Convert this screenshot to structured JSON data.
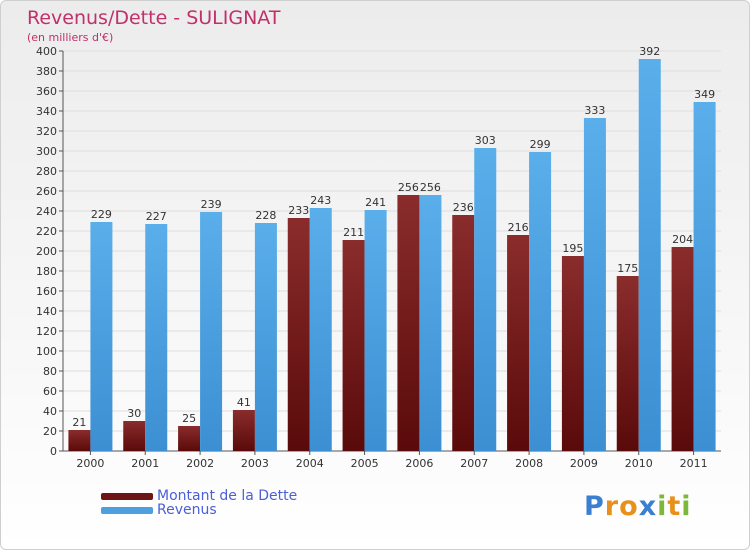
{
  "chart_data": {
    "type": "bar",
    "title": "Revenus/Dette - SULIGNAT",
    "subtitle": "(en milliers d'€)",
    "xlabel": "",
    "ylabel": "",
    "ylim": [
      0,
      400
    ],
    "ytick_step": 20,
    "grid": true,
    "legend_position": "bottom-left",
    "categories": [
      "2000",
      "2001",
      "2002",
      "2003",
      "2004",
      "2005",
      "2006",
      "2007",
      "2008",
      "2009",
      "2010",
      "2011"
    ],
    "series": [
      {
        "name": "Montant de la Dette",
        "color": "#6e1515",
        "values": [
          21,
          30,
          25,
          41,
          233,
          211,
          256,
          236,
          216,
          195,
          175,
          204
        ]
      },
      {
        "name": "Revenus",
        "color": "#4d9fe0",
        "values": [
          229,
          227,
          239,
          228,
          243,
          241,
          256,
          303,
          299,
          333,
          392,
          349
        ]
      }
    ]
  },
  "brand": {
    "letters": [
      {
        "ch": "P",
        "color": "#3a7fd0"
      },
      {
        "ch": "r",
        "color": "#e8901c"
      },
      {
        "ch": "o",
        "color": "#e8901c"
      },
      {
        "ch": "x",
        "color": "#3a7fd0"
      },
      {
        "ch": "i",
        "color": "#7cb83a"
      },
      {
        "ch": "t",
        "color": "#e8901c"
      },
      {
        "ch": "i",
        "color": "#7cb83a"
      }
    ]
  }
}
